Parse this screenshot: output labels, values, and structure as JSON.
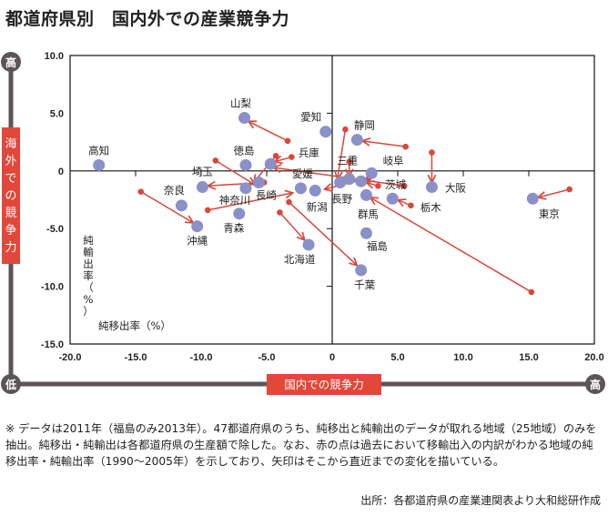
{
  "title": "都道府県別　国内外での産業競争力",
  "axis_badges": {
    "y_high": "高",
    "y_low": "低",
    "x_high": "高",
    "y_title": "海外での競争力",
    "x_title": "国内での競争力"
  },
  "colors": {
    "badge_red": "#e2473a",
    "badge_gray": "#5b5556",
    "point_blue": "#8a90c8",
    "arrow_red": "#d9483b"
  },
  "chart_data": {
    "type": "scatter",
    "title": "都道府県別　国内外での産業競争力",
    "xlabel": "純移出率（%）",
    "ylabel": "純輸出率（%）",
    "xlim": [
      -20,
      20
    ],
    "ylim": [
      -15,
      10
    ],
    "xticks": [
      "-20.0",
      "-15.0",
      "-10.0",
      "-5.0",
      "0",
      "5.0",
      "10.0",
      "15.0",
      "20.0"
    ],
    "yticks": [
      "10.0",
      "5.0",
      "0",
      "-5.0",
      "-10.0",
      "-15.0"
    ],
    "xtick_values": [
      -20,
      -15,
      -10,
      -5,
      0,
      5,
      10,
      15,
      20
    ],
    "ytick_values": [
      10,
      5,
      0,
      -5,
      -10,
      -15
    ],
    "grid": false,
    "points_2011": [
      {
        "name": "高知",
        "x": -17.8,
        "y": 0.5,
        "label_dx": 0,
        "label_dy": -1
      },
      {
        "name": "山梨",
        "x": -6.7,
        "y": 4.6
      },
      {
        "name": "愛知",
        "x": -0.5,
        "y": 3.4
      },
      {
        "name": "静岡",
        "x": 1.9,
        "y": 2.7
      },
      {
        "name": "徳島",
        "x": -6.6,
        "y": 0.5
      },
      {
        "name": "兵庫",
        "x": -4.7,
        "y": 0.6
      },
      {
        "name": "埼玉",
        "x": -9.9,
        "y": -1.4
      },
      {
        "name": "神奈川",
        "x": -6.6,
        "y": -1.5
      },
      {
        "name": "長崎",
        "x": -5.6,
        "y": -1.0
      },
      {
        "name": "愛媛",
        "x": -2.4,
        "y": -1.5
      },
      {
        "name": "新潟",
        "x": -1.3,
        "y": -1.7
      },
      {
        "name": "奈良",
        "x": -11.5,
        "y": -3.0
      },
      {
        "name": "沖縄",
        "x": -10.3,
        "y": -4.8
      },
      {
        "name": "青森",
        "x": -7.1,
        "y": -3.7
      },
      {
        "name": "北海道",
        "x": -1.8,
        "y": -6.4
      },
      {
        "name": "千葉",
        "x": 2.2,
        "y": -8.6
      },
      {
        "name": "福島",
        "x": 2.6,
        "y": -5.4
      },
      {
        "name": "群馬",
        "x": 2.6,
        "y": -2.1
      },
      {
        "name": "長野",
        "x": 0.6,
        "y": -1.0
      },
      {
        "name": "三重",
        "x": 1.3,
        "y": -0.7
      },
      {
        "name": "岐阜",
        "x": 3.0,
        "y": -0.2
      },
      {
        "name": "茨城",
        "x": 2.2,
        "y": -0.9
      },
      {
        "name": "栃木",
        "x": 4.6,
        "y": -2.4
      },
      {
        "name": "大阪",
        "x": 7.6,
        "y": -1.4
      },
      {
        "name": "東京",
        "x": 15.3,
        "y": -2.4
      }
    ],
    "arrows_from_1990_2005": [
      {
        "from": [
          -3.4,
          2.6
        ],
        "to": [
          -6.4,
          4.3
        ]
      },
      {
        "from": [
          -3.1,
          1.2
        ],
        "to": [
          -4.4,
          0.8
        ]
      },
      {
        "from": [
          -8.9,
          0.9
        ],
        "to": [
          -5.9,
          -1.2
        ]
      },
      {
        "from": [
          -4.3,
          1.3
        ],
        "to": [
          -6.0,
          -1.0
        ]
      },
      {
        "from": [
          -5.2,
          -1.0
        ],
        "to": [
          -9.5,
          -1.3
        ]
      },
      {
        "from": [
          -14.6,
          -1.8
        ],
        "to": [
          -10.6,
          -4.5
        ]
      },
      {
        "from": [
          -9.5,
          -3.4
        ],
        "to": [
          -3.0,
          -1.9
        ]
      },
      {
        "from": [
          -4.0,
          -3.6
        ],
        "to": [
          -2.1,
          -6.0
        ]
      },
      {
        "from": [
          -3.3,
          -2.7
        ],
        "to": [
          1.9,
          -8.2
        ]
      },
      {
        "from": [
          1.0,
          3.6
        ],
        "to": [
          0.4,
          -0.7
        ]
      },
      {
        "from": [
          1.3,
          0.8
        ],
        "to": [
          1.3,
          -0.5
        ]
      },
      {
        "from": [
          2.8,
          -0.6
        ],
        "to": [
          -0.6,
          -1.6
        ]
      },
      {
        "from": [
          3.5,
          -1.3
        ],
        "to": [
          2.6,
          -1.0
        ]
      },
      {
        "from": [
          5.6,
          2.1
        ],
        "to": [
          2.3,
          2.6
        ]
      },
      {
        "from": [
          7.6,
          1.6
        ],
        "to": [
          7.6,
          -1.0
        ]
      },
      {
        "from": [
          6.0,
          -3.0
        ],
        "to": [
          5.0,
          -2.5
        ]
      },
      {
        "from": [
          18.1,
          -1.6
        ],
        "to": [
          15.7,
          -2.3
        ]
      },
      {
        "from": [
          15.2,
          -10.5
        ],
        "to": [
          2.9,
          -2.3
        ]
      },
      {
        "from": [
          5.5,
          -1.3
        ],
        "to": [
          -4.5,
          0.3
        ]
      }
    ]
  },
  "axis_text": {
    "ylabel_vertical": [
      "純",
      "輸",
      "出",
      "率",
      "（",
      "%",
      "）"
    ],
    "xlabel": "純移出率（%）"
  },
  "footnote": "※ データは2011年（福島のみ2013年）。47都道府県のうち、純移出と純輸出のデータが取れる地域（25地域）のみを抽出。純移出・純輸出は各都道府県の生産額で除した。なお、赤の点は過去において移輸出入の内訳がわかる地域の純移出率・純輸出率（1990～2005年）を示しており、矢印はそこから直近までの変化を描いている。",
  "source": "出所：各都道府県の産業連関表より大和総研作成"
}
